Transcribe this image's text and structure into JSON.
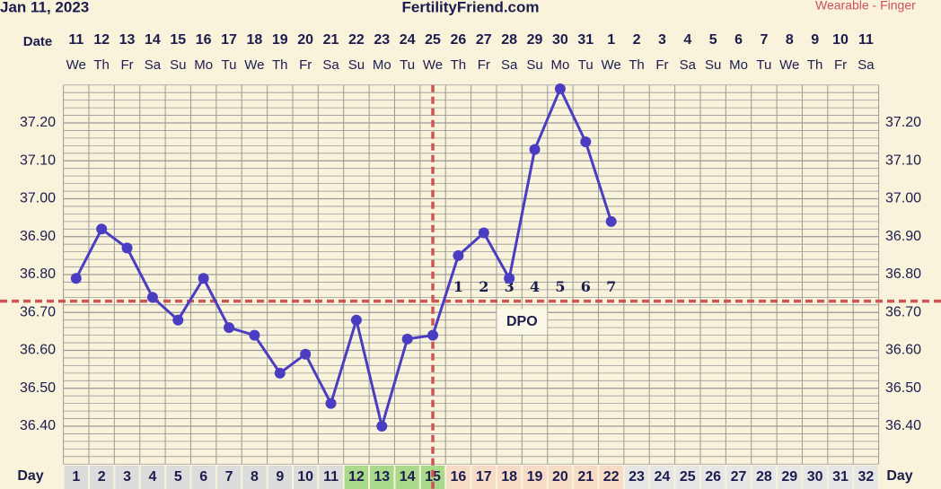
{
  "chart_data": {
    "type": "line",
    "date_label": "Jan 11, 2023",
    "site": "FertilityFriend.com",
    "source": "Wearable - Finger",
    "date_axis_label": "Date",
    "day_axis_label": "Day",
    "dates": [
      "11",
      "12",
      "13",
      "14",
      "15",
      "16",
      "17",
      "18",
      "19",
      "20",
      "21",
      "22",
      "23",
      "24",
      "25",
      "26",
      "27",
      "28",
      "29",
      "30",
      "31",
      "1",
      "2",
      "3",
      "4",
      "5",
      "6",
      "7",
      "8",
      "9",
      "10",
      "11"
    ],
    "weekdays": [
      "We",
      "Th",
      "Fr",
      "Sa",
      "Su",
      "Mo",
      "Tu",
      "We",
      "Th",
      "Fr",
      "Sa",
      "Su",
      "Mo",
      "Tu",
      "We",
      "Th",
      "Fr",
      "Sa",
      "Su",
      "Mo",
      "Tu",
      "We",
      "Th",
      "Fr",
      "Sa",
      "Su",
      "Mo",
      "Tu",
      "We",
      "Th",
      "Fr",
      "Sa"
    ],
    "x": [
      1,
      2,
      3,
      4,
      5,
      6,
      7,
      8,
      9,
      10,
      11,
      12,
      13,
      14,
      15,
      16,
      17,
      18,
      19,
      20,
      21,
      22,
      23,
      24,
      25,
      26,
      27,
      28,
      29,
      30,
      31,
      32
    ],
    "day_colors": [
      "#dcdcdc",
      "#dcdcdc",
      "#dcdcdc",
      "#dcdcdc",
      "#dcdcdc",
      "#dcdcdc",
      "#dcdcdc",
      "#dcdcdc",
      "#dcdcdc",
      "#dcdcdc",
      "#dcdcdc",
      "#a9d98a",
      "#a9d98a",
      "#a9d98a",
      "#a9d98a",
      "#f6dcc6",
      "#f6dcc6",
      "#f6dcc6",
      "#f6dcc6",
      "#f6dcc6",
      "#f6dcc6",
      "#f6dcc6",
      "#e6e6e6",
      "#e6e6e6",
      "#e6e6e6",
      "#e6e6e6",
      "#e6e6e6",
      "#e6e6e6",
      "#e6e6e6",
      "#e6e6e6",
      "#e6e6e6",
      "#e6e6e6"
    ],
    "series": [
      {
        "color": "#4a3dc2",
        "values": [
          36.79,
          36.92,
          36.87,
          36.74,
          36.68,
          36.79,
          36.66,
          36.64,
          36.54,
          36.59,
          36.46,
          36.68,
          36.4,
          36.63,
          36.64,
          36.85,
          36.91,
          36.79,
          37.13,
          37.29,
          37.15,
          36.94,
          null,
          null,
          null,
          null,
          null,
          null,
          null,
          null,
          null,
          null
        ]
      }
    ],
    "xlim": [
      0.5,
      32.5
    ],
    "ylim": [
      36.3,
      37.3
    ],
    "yticks": [
      {
        "value": 36.4,
        "label": "36.40"
      },
      {
        "value": 36.5,
        "label": "36.50"
      },
      {
        "value": 36.6,
        "label": "36.60"
      },
      {
        "value": 36.7,
        "label": "36.70"
      },
      {
        "value": 36.8,
        "label": "36.80"
      },
      {
        "value": 36.9,
        "label": "36.90"
      },
      {
        "value": 37.0,
        "label": "37.00"
      },
      {
        "value": 37.1,
        "label": "37.10"
      },
      {
        "value": 37.2,
        "label": "37.20"
      }
    ],
    "grid": true,
    "grid_color": "#9a9a9a",
    "coverline": 36.73,
    "ovulation_day": 15,
    "marker_line_color": "#cc5555",
    "dpo_numbers": [
      1,
      2,
      3,
      4,
      5,
      6,
      7
    ],
    "dpo_label": "DPO"
  }
}
